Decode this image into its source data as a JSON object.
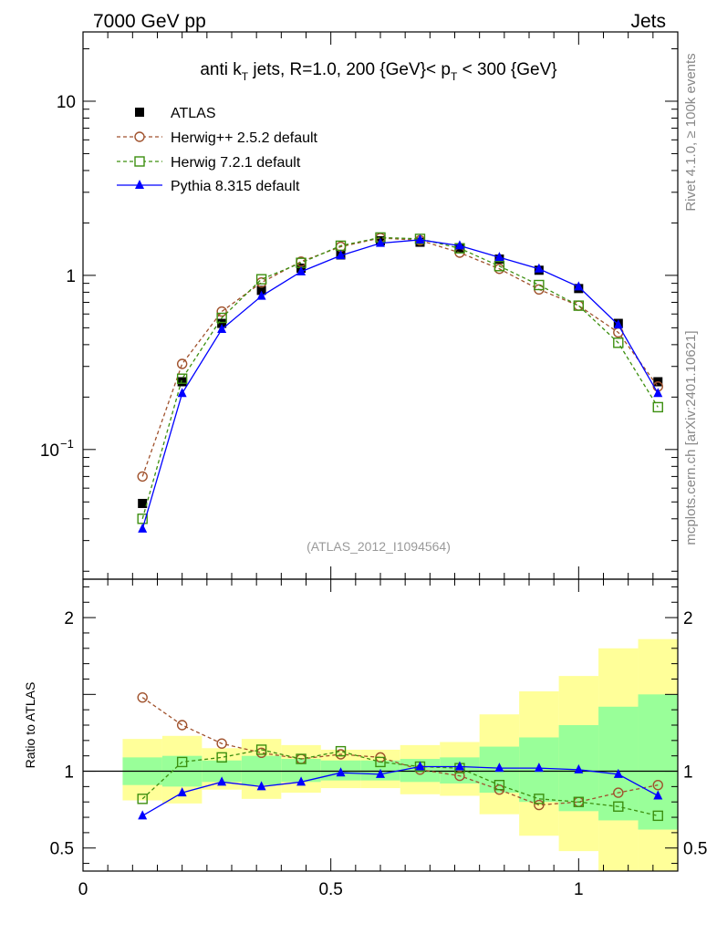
{
  "header": {
    "left": "7000 GeV pp",
    "right": "Jets"
  },
  "side_labels": {
    "rivet": "Rivet 4.1.0, ≥ 100k events",
    "mcplots": "mcplots.cern.ch [arXiv:2401.10621]"
  },
  "chart_data": {
    "type": "line",
    "title": "anti k_T jets, R=1.0,  200 {GeV}< p_T < 300 {GeV}",
    "title_parts": {
      "a": "anti k",
      "a_sub": "T",
      "b": " jets, R=1.0,  200 {GeV}< p",
      "b_sub": "T",
      "c": " < 300 {GeV}"
    },
    "analysis": "(ATLAS_2012_I1094564)",
    "xlim": [
      0,
      1.2
    ],
    "main": {
      "yscale": "log",
      "ylim": [
        0.018,
        25
      ],
      "yticks": [
        {
          "v": 10,
          "label": "10"
        },
        {
          "v": 1,
          "label": "1"
        },
        {
          "v": 0.1,
          "base": "10",
          "exp": "−1"
        }
      ]
    },
    "ratio": {
      "ylabel": "Ratio to ATLAS",
      "ylim": [
        0.35,
        2.25
      ],
      "yticks": [
        {
          "v": 2,
          "label": "2"
        },
        {
          "v": 1,
          "label": "1"
        },
        {
          "v": 0.5,
          "label": "0.5"
        }
      ],
      "xticks": [
        {
          "v": 0,
          "label": "0"
        },
        {
          "v": 0.5,
          "label": "0.5"
        },
        {
          "v": 1,
          "label": "1"
        }
      ],
      "bands": [
        {
          "x0": 0.08,
          "x1": 0.16,
          "y_lo": 0.81,
          "y_hi": 1.21,
          "g_lo": 0.91,
          "g_hi": 1.09
        },
        {
          "x0": 0.16,
          "x1": 0.24,
          "y_lo": 0.79,
          "y_hi": 1.23,
          "g_lo": 0.9,
          "g_hi": 1.1
        },
        {
          "x0": 0.24,
          "x1": 0.32,
          "y_lo": 0.88,
          "y_hi": 1.15,
          "g_lo": 0.93,
          "g_hi": 1.07
        },
        {
          "x0": 0.32,
          "x1": 0.4,
          "y_lo": 0.82,
          "y_hi": 1.21,
          "g_lo": 0.91,
          "g_hi": 1.1
        },
        {
          "x0": 0.4,
          "x1": 0.48,
          "y_lo": 0.86,
          "y_hi": 1.17,
          "g_lo": 0.93,
          "g_hi": 1.08
        },
        {
          "x0": 0.48,
          "x1": 0.56,
          "y_lo": 0.89,
          "y_hi": 1.14,
          "g_lo": 0.94,
          "g_hi": 1.07
        },
        {
          "x0": 0.56,
          "x1": 0.64,
          "y_lo": 0.89,
          "y_hi": 1.14,
          "g_lo": 0.94,
          "g_hi": 1.07
        },
        {
          "x0": 0.64,
          "x1": 0.72,
          "y_lo": 0.85,
          "y_hi": 1.17,
          "g_lo": 0.93,
          "g_hi": 1.08
        },
        {
          "x0": 0.72,
          "x1": 0.8,
          "y_lo": 0.84,
          "y_hi": 1.19,
          "g_lo": 0.92,
          "g_hi": 1.09
        },
        {
          "x0": 0.8,
          "x1": 0.88,
          "y_lo": 0.72,
          "y_hi": 1.37,
          "g_lo": 0.86,
          "g_hi": 1.16
        },
        {
          "x0": 0.88,
          "x1": 0.96,
          "y_lo": 0.58,
          "y_hi": 1.52,
          "g_lo": 0.8,
          "g_hi": 1.22
        },
        {
          "x0": 0.96,
          "x1": 1.04,
          "y_lo": 0.48,
          "y_hi": 1.62,
          "g_lo": 0.74,
          "g_hi": 1.3
        },
        {
          "x0": 1.04,
          "x1": 1.12,
          "y_lo": 0.35,
          "y_hi": 1.8,
          "g_lo": 0.68,
          "g_hi": 1.42
        },
        {
          "x0": 1.12,
          "x1": 1.2,
          "y_lo": 0.35,
          "y_hi": 1.86,
          "g_lo": 0.62,
          "g_hi": 1.5
        }
      ]
    },
    "x": [
      0.12,
      0.2,
      0.28,
      0.36,
      0.44,
      0.52,
      0.6,
      0.68,
      0.76,
      0.84,
      0.92,
      1.0,
      1.08,
      1.16
    ],
    "series": [
      {
        "name": "ATLAS",
        "color": "#000000",
        "marker": "square-filled",
        "values": [
          0.049,
          0.245,
          0.53,
          0.82,
          1.1,
          1.31,
          1.58,
          1.55,
          1.44,
          1.24,
          1.07,
          0.84,
          0.53,
          0.245
        ],
        "ratio": [
          1,
          1,
          1,
          1,
          1,
          1,
          1,
          1,
          1,
          1,
          1,
          1,
          1,
          1
        ]
      },
      {
        "name": "Herwig++ 2.5.2 default",
        "color": "#a0522d",
        "marker": "circle-open",
        "dashed": true,
        "values": [
          0.07,
          0.31,
          0.62,
          0.91,
          1.2,
          1.46,
          1.64,
          1.59,
          1.35,
          1.09,
          0.83,
          0.67,
          0.47,
          0.23
        ],
        "ratio": [
          1.48,
          1.3,
          1.18,
          1.12,
          1.08,
          1.11,
          1.09,
          1.01,
          0.97,
          0.88,
          0.78,
          0.8,
          0.86,
          0.91
        ]
      },
      {
        "name": "Herwig 7.2.1 default",
        "color": "#3c8f0f",
        "marker": "square-open",
        "dashed": true,
        "values": [
          0.04,
          0.255,
          0.57,
          0.95,
          1.18,
          1.48,
          1.65,
          1.62,
          1.43,
          1.13,
          0.88,
          0.67,
          0.41,
          0.175
        ],
        "ratio": [
          0.82,
          1.06,
          1.09,
          1.14,
          1.08,
          1.13,
          1.06,
          1.03,
          1.02,
          0.91,
          0.82,
          0.8,
          0.77,
          0.71
        ]
      },
      {
        "name": "Pythia 8.315 default",
        "color": "#0000ff",
        "marker": "triangle-filled",
        "values": [
          0.035,
          0.21,
          0.49,
          0.76,
          1.05,
          1.3,
          1.53,
          1.6,
          1.48,
          1.27,
          1.09,
          0.86,
          0.52,
          0.21
        ],
        "ratio": [
          0.71,
          0.86,
          0.93,
          0.9,
          0.93,
          0.99,
          0.98,
          1.03,
          1.03,
          1.02,
          1.02,
          1.01,
          0.98,
          0.84
        ]
      }
    ]
  }
}
